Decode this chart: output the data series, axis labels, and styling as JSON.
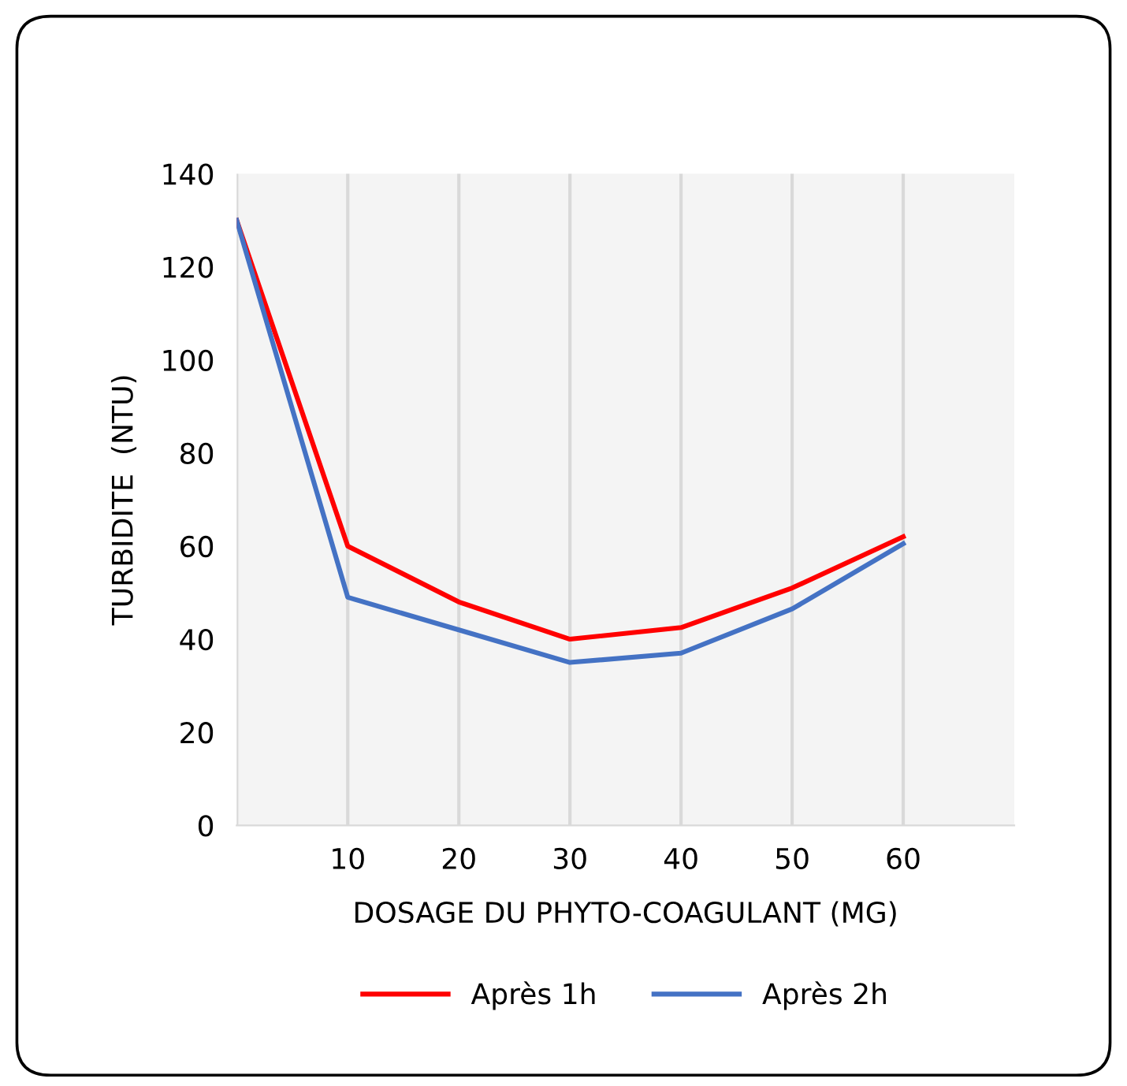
{
  "chart_data": {
    "type": "line",
    "xlabel": "DOSAGE DU PHYTO-COAGULANT (MG)",
    "ylabel": "TURBIDITE  (NTU)",
    "x": [
      0,
      10,
      20,
      30,
      40,
      50,
      60
    ],
    "series": [
      {
        "name": "Après 1h",
        "color": "#ff0000",
        "values": [
          130,
          60,
          48,
          40,
          42.5,
          51,
          62
        ]
      },
      {
        "name": "Après 2h",
        "color": "#4472c4",
        "values": [
          130,
          49,
          42,
          35,
          37,
          46.5,
          60.5
        ]
      }
    ],
    "xlim": [
      0,
      70
    ],
    "xticks": [
      {
        "value": 0,
        "label": null
      },
      10,
      20,
      30,
      40,
      50,
      60
    ],
    "ylim": [
      0,
      140
    ],
    "yticks": [
      0,
      20,
      40,
      60,
      80,
      100,
      120,
      140
    ],
    "grid": "x",
    "legend": "bottom",
    "marker": "none",
    "line_style": "solid"
  }
}
